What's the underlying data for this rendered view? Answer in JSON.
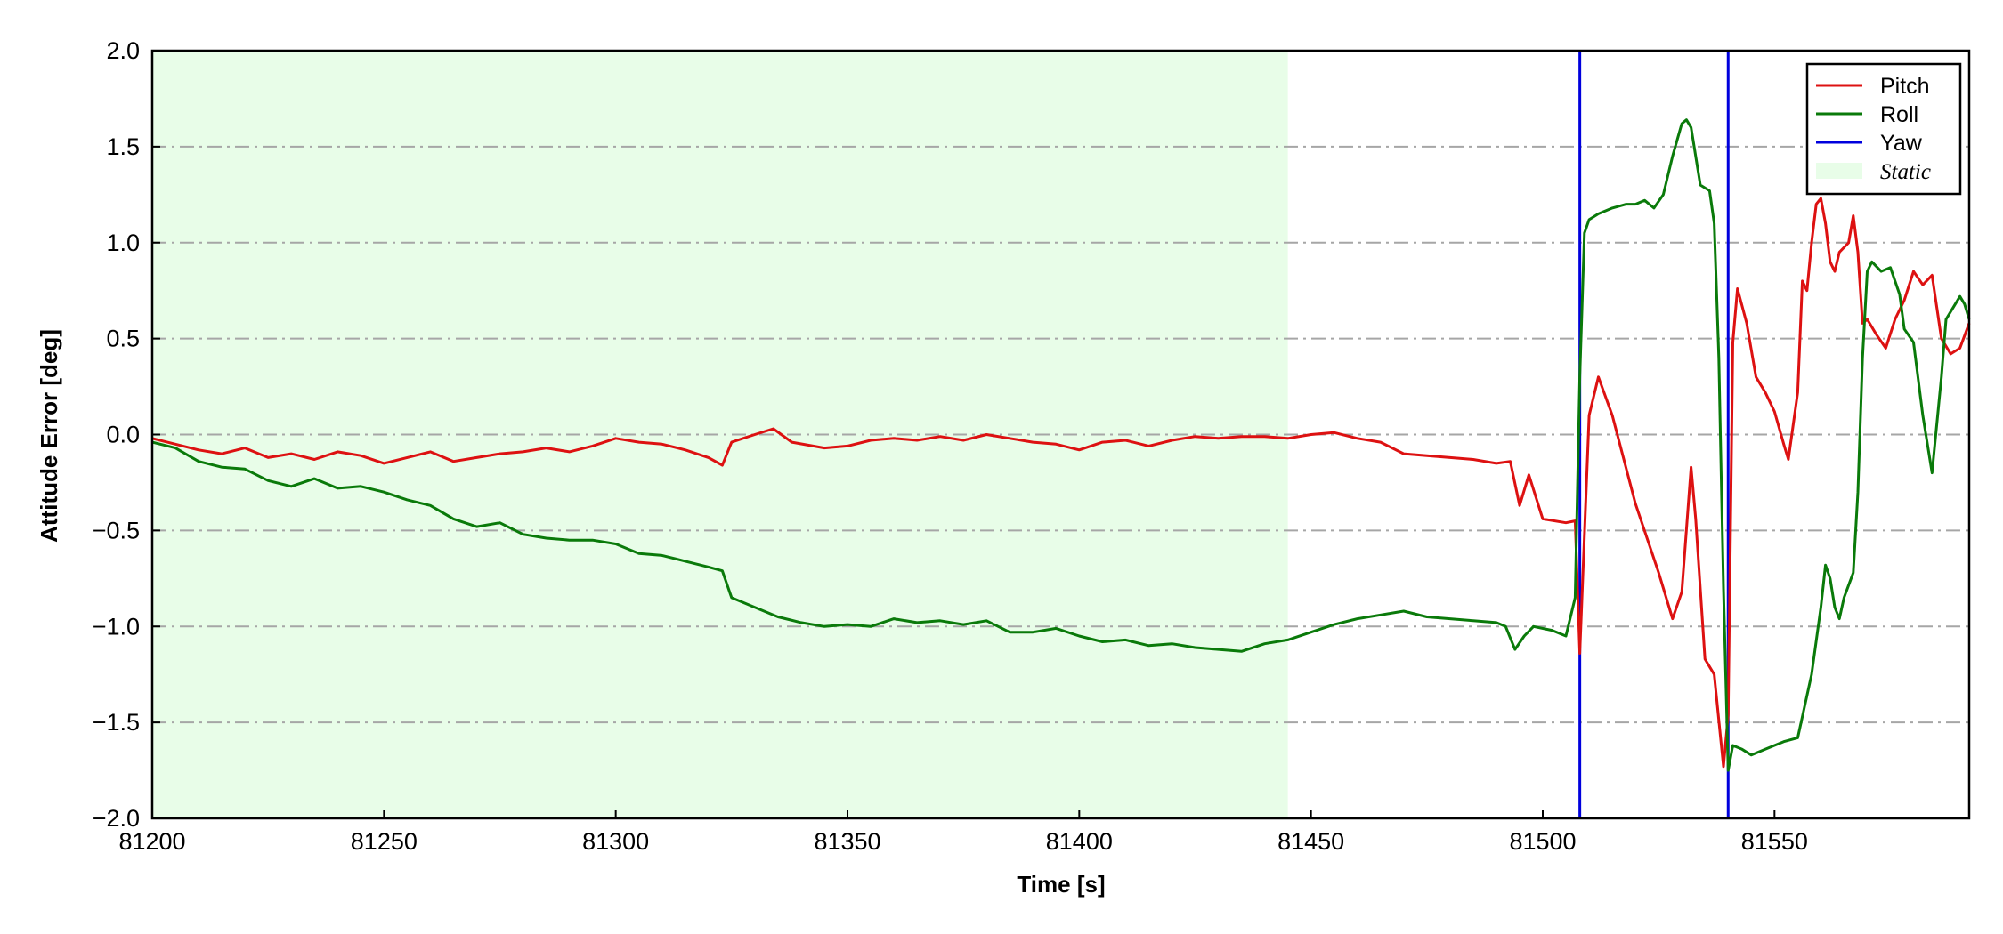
{
  "chart_data": {
    "type": "line",
    "title": "",
    "xlabel": "Time [s]",
    "ylabel": "Attitude Error [deg]",
    "xlim": [
      81200,
      81592
    ],
    "ylim": [
      -2.0,
      2.0
    ],
    "xticks": [
      81200,
      81250,
      81300,
      81350,
      81400,
      81450,
      81500,
      81550
    ],
    "xtick_labels": [
      "81200",
      "81250",
      "81300",
      "81350",
      "81400",
      "81450",
      "81500",
      "81550"
    ],
    "yticks": [
      -2.0,
      -1.5,
      -1.0,
      -0.5,
      0.0,
      0.5,
      1.0,
      1.5,
      2.0
    ],
    "ytick_labels": [
      "−2.0",
      "−1.5",
      "−1.0",
      "−0.5",
      "0.0",
      "0.5",
      "1.0",
      "1.5",
      "2.0"
    ],
    "grid": "horizontal dash-dot",
    "legend": "top-right",
    "static_region": {
      "name": "Static",
      "x0": 81200,
      "x1": 81445,
      "color": "#e8fde8"
    },
    "yaw_lines": {
      "name": "Yaw",
      "color": "#0000dd",
      "x": [
        81508,
        81540
      ]
    },
    "series": [
      {
        "name": "Pitch",
        "color": "#dd1111",
        "points": [
          [
            81200,
            -0.02
          ],
          [
            81205,
            -0.05
          ],
          [
            81210,
            -0.08
          ],
          [
            81215,
            -0.1
          ],
          [
            81220,
            -0.07
          ],
          [
            81225,
            -0.12
          ],
          [
            81230,
            -0.1
          ],
          [
            81235,
            -0.13
          ],
          [
            81240,
            -0.09
          ],
          [
            81245,
            -0.11
          ],
          [
            81250,
            -0.15
          ],
          [
            81255,
            -0.12
          ],
          [
            81260,
            -0.09
          ],
          [
            81265,
            -0.14
          ],
          [
            81270,
            -0.12
          ],
          [
            81275,
            -0.1
          ],
          [
            81280,
            -0.09
          ],
          [
            81285,
            -0.07
          ],
          [
            81290,
            -0.09
          ],
          [
            81295,
            -0.06
          ],
          [
            81300,
            -0.02
          ],
          [
            81305,
            -0.04
          ],
          [
            81310,
            -0.05
          ],
          [
            81315,
            -0.08
          ],
          [
            81320,
            -0.12
          ],
          [
            81323,
            -0.16
          ],
          [
            81325,
            -0.04
          ],
          [
            81330,
            0.0
          ],
          [
            81334,
            0.03
          ],
          [
            81338,
            -0.04
          ],
          [
            81345,
            -0.07
          ],
          [
            81350,
            -0.06
          ],
          [
            81355,
            -0.03
          ],
          [
            81360,
            -0.02
          ],
          [
            81365,
            -0.03
          ],
          [
            81370,
            -0.01
          ],
          [
            81375,
            -0.03
          ],
          [
            81380,
            0.0
          ],
          [
            81385,
            -0.02
          ],
          [
            81390,
            -0.04
          ],
          [
            81395,
            -0.05
          ],
          [
            81400,
            -0.08
          ],
          [
            81405,
            -0.04
          ],
          [
            81410,
            -0.03
          ],
          [
            81415,
            -0.06
          ],
          [
            81420,
            -0.03
          ],
          [
            81425,
            -0.01
          ],
          [
            81430,
            -0.02
          ],
          [
            81435,
            -0.01
          ],
          [
            81440,
            -0.01
          ],
          [
            81445,
            -0.02
          ],
          [
            81450,
            0.0
          ],
          [
            81455,
            0.01
          ],
          [
            81460,
            -0.02
          ],
          [
            81465,
            -0.04
          ],
          [
            81470,
            -0.1
          ],
          [
            81475,
            -0.11
          ],
          [
            81480,
            -0.12
          ],
          [
            81485,
            -0.13
          ],
          [
            81490,
            -0.15
          ],
          [
            81493,
            -0.14
          ],
          [
            81495,
            -0.37
          ],
          [
            81497,
            -0.21
          ],
          [
            81500,
            -0.44
          ],
          [
            81505,
            -0.46
          ],
          [
            81507,
            -0.45
          ],
          [
            81508,
            -1.14
          ],
          [
            81510,
            0.1
          ],
          [
            81512,
            0.3
          ],
          [
            81515,
            0.1
          ],
          [
            81520,
            -0.36
          ],
          [
            81525,
            -0.72
          ],
          [
            81528,
            -0.96
          ],
          [
            81530,
            -0.82
          ],
          [
            81532,
            -0.17
          ],
          [
            81533,
            -0.44
          ],
          [
            81535,
            -1.17
          ],
          [
            81537,
            -1.25
          ],
          [
            81539,
            -1.73
          ],
          [
            81540,
            -1.46
          ],
          [
            81541,
            0.48
          ],
          [
            81542,
            0.76
          ],
          [
            81544,
            0.58
          ],
          [
            81546,
            0.3
          ],
          [
            81548,
            0.22
          ],
          [
            81550,
            0.12
          ],
          [
            81552,
            -0.05
          ],
          [
            81553,
            -0.13
          ],
          [
            81555,
            0.22
          ],
          [
            81556,
            0.8
          ],
          [
            81557,
            0.75
          ],
          [
            81558,
            1.0
          ],
          [
            81559,
            1.2
          ],
          [
            81560,
            1.23
          ],
          [
            81561,
            1.1
          ],
          [
            81562,
            0.9
          ],
          [
            81563,
            0.85
          ],
          [
            81564,
            0.95
          ],
          [
            81566,
            1.0
          ],
          [
            81567,
            1.14
          ],
          [
            81568,
            0.95
          ],
          [
            81569,
            0.58
          ],
          [
            81570,
            0.6
          ],
          [
            81572,
            0.52
          ],
          [
            81574,
            0.45
          ],
          [
            81576,
            0.6
          ],
          [
            81578,
            0.7
          ],
          [
            81580,
            0.85
          ],
          [
            81582,
            0.78
          ],
          [
            81584,
            0.83
          ],
          [
            81586,
            0.5
          ],
          [
            81588,
            0.42
          ],
          [
            81590,
            0.45
          ],
          [
            81592,
            0.58
          ]
        ]
      },
      {
        "name": "Roll",
        "color": "#0a7a0a",
        "points": [
          [
            81200,
            -0.04
          ],
          [
            81205,
            -0.07
          ],
          [
            81210,
            -0.14
          ],
          [
            81215,
            -0.17
          ],
          [
            81220,
            -0.18
          ],
          [
            81225,
            -0.24
          ],
          [
            81230,
            -0.27
          ],
          [
            81235,
            -0.23
          ],
          [
            81240,
            -0.28
          ],
          [
            81245,
            -0.27
          ],
          [
            81250,
            -0.3
          ],
          [
            81255,
            -0.34
          ],
          [
            81260,
            -0.37
          ],
          [
            81265,
            -0.44
          ],
          [
            81270,
            -0.48
          ],
          [
            81275,
            -0.46
          ],
          [
            81280,
            -0.52
          ],
          [
            81285,
            -0.54
          ],
          [
            81290,
            -0.55
          ],
          [
            81295,
            -0.55
          ],
          [
            81300,
            -0.57
          ],
          [
            81305,
            -0.62
          ],
          [
            81310,
            -0.63
          ],
          [
            81315,
            -0.66
          ],
          [
            81320,
            -0.69
          ],
          [
            81323,
            -0.71
          ],
          [
            81325,
            -0.85
          ],
          [
            81330,
            -0.9
          ],
          [
            81335,
            -0.95
          ],
          [
            81340,
            -0.98
          ],
          [
            81345,
            -1.0
          ],
          [
            81350,
            -0.99
          ],
          [
            81355,
            -1.0
          ],
          [
            81360,
            -0.96
          ],
          [
            81365,
            -0.98
          ],
          [
            81370,
            -0.97
          ],
          [
            81375,
            -0.99
          ],
          [
            81380,
            -0.97
          ],
          [
            81385,
            -1.03
          ],
          [
            81390,
            -1.03
          ],
          [
            81395,
            -1.01
          ],
          [
            81400,
            -1.05
          ],
          [
            81405,
            -1.08
          ],
          [
            81410,
            -1.07
          ],
          [
            81415,
            -1.1
          ],
          [
            81420,
            -1.09
          ],
          [
            81425,
            -1.11
          ],
          [
            81430,
            -1.12
          ],
          [
            81435,
            -1.13
          ],
          [
            81440,
            -1.09
          ],
          [
            81445,
            -1.07
          ],
          [
            81450,
            -1.03
          ],
          [
            81455,
            -0.99
          ],
          [
            81460,
            -0.96
          ],
          [
            81465,
            -0.94
          ],
          [
            81470,
            -0.92
          ],
          [
            81475,
            -0.95
          ],
          [
            81480,
            -0.96
          ],
          [
            81485,
            -0.97
          ],
          [
            81490,
            -0.98
          ],
          [
            81492,
            -1.0
          ],
          [
            81494,
            -1.12
          ],
          [
            81496,
            -1.05
          ],
          [
            81498,
            -1.0
          ],
          [
            81502,
            -1.02
          ],
          [
            81505,
            -1.05
          ],
          [
            81507,
            -0.85
          ],
          [
            81508,
            0.3
          ],
          [
            81509,
            1.05
          ],
          [
            81510,
            1.12
          ],
          [
            81512,
            1.15
          ],
          [
            81515,
            1.18
          ],
          [
            81518,
            1.2
          ],
          [
            81520,
            1.2
          ],
          [
            81522,
            1.22
          ],
          [
            81524,
            1.18
          ],
          [
            81526,
            1.25
          ],
          [
            81528,
            1.45
          ],
          [
            81530,
            1.62
          ],
          [
            81531,
            1.64
          ],
          [
            81532,
            1.6
          ],
          [
            81534,
            1.3
          ],
          [
            81536,
            1.27
          ],
          [
            81537,
            1.1
          ],
          [
            81538,
            0.4
          ],
          [
            81539,
            -0.8
          ],
          [
            81540,
            -1.75
          ],
          [
            81541,
            -1.62
          ],
          [
            81543,
            -1.64
          ],
          [
            81545,
            -1.67
          ],
          [
            81548,
            -1.64
          ],
          [
            81552,
            -1.6
          ],
          [
            81555,
            -1.58
          ],
          [
            81557,
            -1.36
          ],
          [
            81558,
            -1.25
          ],
          [
            81560,
            -0.9
          ],
          [
            81561,
            -0.68
          ],
          [
            81562,
            -0.75
          ],
          [
            81563,
            -0.9
          ],
          [
            81564,
            -0.96
          ],
          [
            81565,
            -0.85
          ],
          [
            81567,
            -0.72
          ],
          [
            81568,
            -0.3
          ],
          [
            81569,
            0.4
          ],
          [
            81570,
            0.85
          ],
          [
            81571,
            0.9
          ],
          [
            81573,
            0.85
          ],
          [
            81575,
            0.87
          ],
          [
            81577,
            0.73
          ],
          [
            81578,
            0.55
          ],
          [
            81580,
            0.48
          ],
          [
            81582,
            0.1
          ],
          [
            81584,
            -0.2
          ],
          [
            81586,
            0.3
          ],
          [
            81587,
            0.6
          ],
          [
            81589,
            0.68
          ],
          [
            81590,
            0.72
          ],
          [
            81591,
            0.68
          ],
          [
            81592,
            0.6
          ]
        ]
      }
    ]
  }
}
